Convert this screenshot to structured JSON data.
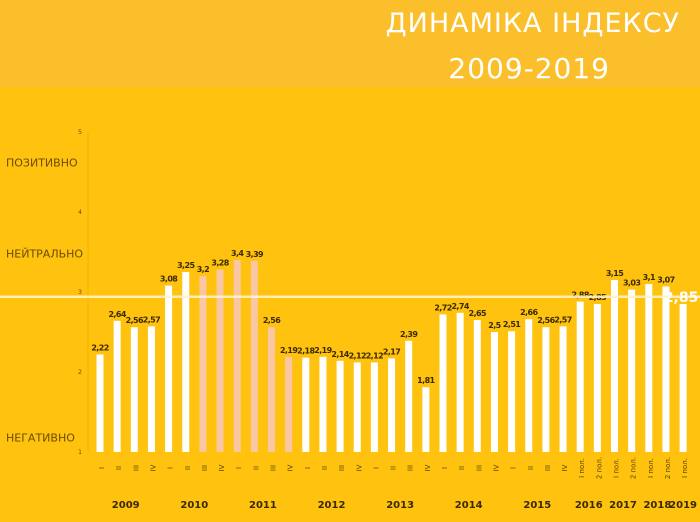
{
  "title": {
    "line1": "ДИНАМІКА ІНДЕКСУ",
    "line2": "2009-2019"
  },
  "colors": {
    "background": "#ffc20e",
    "header": "#fcbf2c",
    "bar": "#ffffff",
    "bar_highlight": "#f9c7a4",
    "reference_line": "#fff3c6"
  },
  "chart_data": {
    "type": "bar",
    "ylim": [
      1,
      5
    ],
    "y_ticks": [
      "1",
      "2",
      "3",
      "4",
      "5"
    ],
    "sentiment_labels": [
      {
        "text": "ПОЗИТИВНО",
        "y": 4.62
      },
      {
        "text": "НЕЙТРАЛЬНО",
        "y": 3.48
      },
      {
        "text": "НЕГАТИВНО",
        "y": 1.18
      }
    ],
    "reference_line": 2.94,
    "current_value_label": "2,85",
    "bars": [
      {
        "year": "2009",
        "period": "I",
        "value": 2.22,
        "label": "2,22",
        "highlight": false
      },
      {
        "year": "2009",
        "period": "II",
        "value": 2.64,
        "label": "2,64",
        "highlight": false
      },
      {
        "year": "2009",
        "period": "III",
        "value": 2.56,
        "label": "2,56",
        "highlight": false
      },
      {
        "year": "2009",
        "period": "IV",
        "value": 2.57,
        "label": "2,57",
        "highlight": false
      },
      {
        "year": "2010",
        "period": "I",
        "value": 3.08,
        "label": "3,08",
        "highlight": false
      },
      {
        "year": "2010",
        "period": "II",
        "value": 3.25,
        "label": "3,25",
        "highlight": false
      },
      {
        "year": "2010",
        "period": "III",
        "value": 3.2,
        "label": "3,2",
        "highlight": true
      },
      {
        "year": "2010",
        "period": "IV",
        "value": 3.28,
        "label": "3,28",
        "highlight": true
      },
      {
        "year": "2011",
        "period": "I",
        "value": 3.4,
        "label": "3,4",
        "highlight": true
      },
      {
        "year": "2011",
        "period": "II",
        "value": 3.39,
        "label": "3,39",
        "highlight": true
      },
      {
        "year": "2011",
        "period": "III",
        "value": 2.56,
        "label": "2,56",
        "highlight": true
      },
      {
        "year": "2011",
        "period": "IV",
        "value": 2.19,
        "label": "2,19",
        "highlight": true
      },
      {
        "year": "2012",
        "period": "I",
        "value": 2.18,
        "label": "2,18",
        "highlight": false
      },
      {
        "year": "2012",
        "period": "II",
        "value": 2.19,
        "label": "2,19",
        "highlight": false
      },
      {
        "year": "2012",
        "period": "III",
        "value": 2.14,
        "label": "2,14",
        "highlight": false
      },
      {
        "year": "2012",
        "period": "IV",
        "value": 2.12,
        "label": "2,12",
        "highlight": false
      },
      {
        "year": "2013",
        "period": "I",
        "value": 2.12,
        "label": "2,12",
        "highlight": false
      },
      {
        "year": "2013",
        "period": "II",
        "value": 2.17,
        "label": "2,17",
        "highlight": false
      },
      {
        "year": "2013",
        "period": "III",
        "value": 2.39,
        "label": "2,39",
        "highlight": false
      },
      {
        "year": "2013",
        "period": "IV",
        "value": 1.81,
        "label": "1,81",
        "highlight": false
      },
      {
        "year": "2014",
        "period": "I",
        "value": 2.72,
        "label": "2,72",
        "highlight": false
      },
      {
        "year": "2014",
        "period": "II",
        "value": 2.74,
        "label": "2,74",
        "highlight": false
      },
      {
        "year": "2014",
        "period": "III",
        "value": 2.65,
        "label": "2,65",
        "highlight": false
      },
      {
        "year": "2014",
        "period": "IV",
        "value": 2.5,
        "label": "2,5",
        "highlight": false
      },
      {
        "year": "2015",
        "period": "I",
        "value": 2.51,
        "label": "2,51",
        "highlight": false
      },
      {
        "year": "2015",
        "period": "II",
        "value": 2.66,
        "label": "2,66",
        "highlight": false
      },
      {
        "year": "2015",
        "period": "III",
        "value": 2.56,
        "label": "2,56",
        "highlight": false
      },
      {
        "year": "2015",
        "period": "IV",
        "value": 2.57,
        "label": "2,57",
        "highlight": false
      },
      {
        "year": "2016",
        "period": "I пол.",
        "value": 2.88,
        "label": "2,88",
        "highlight": false
      },
      {
        "year": "2016",
        "period": "2 пол.",
        "value": 2.85,
        "label": "2,85",
        "highlight": false
      },
      {
        "year": "2017",
        "period": "I пол.",
        "value": 3.15,
        "label": "3,15",
        "highlight": false
      },
      {
        "year": "2017",
        "period": "2 пол.",
        "value": 3.03,
        "label": "3,03",
        "highlight": false
      },
      {
        "year": "2018",
        "period": "I пол.",
        "value": 3.1,
        "label": "3,1",
        "highlight": false
      },
      {
        "year": "2018",
        "period": "2 пол.",
        "value": 3.07,
        "label": "3,07",
        "highlight": false
      },
      {
        "year": "2019",
        "period": "I пол.",
        "value": 2.85,
        "label": "",
        "highlight": false
      }
    ],
    "years": [
      "2009",
      "2010",
      "2011",
      "2012",
      "2013",
      "2014",
      "2015",
      "2016",
      "2017",
      "2018",
      "2019"
    ]
  }
}
